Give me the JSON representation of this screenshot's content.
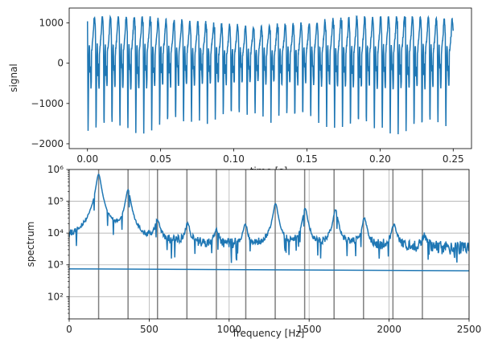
{
  "chart_data": [
    {
      "type": "line",
      "xlabel": "time [s]",
      "ylabel": "signal",
      "xlim": [
        -0.0125,
        0.2625
      ],
      "ylim": [
        -2120,
        1370
      ],
      "xticks": [
        0.0,
        0.05,
        0.1,
        0.15,
        0.2,
        0.25
      ],
      "xtick_labels": [
        "0.00",
        "0.05",
        "0.10",
        "0.15",
        "0.20",
        "0.25"
      ],
      "yticks": [
        -2000,
        -1000,
        0,
        1000
      ],
      "ytick_labels": [
        "−2000",
        "−1000",
        "0",
        "1000"
      ],
      "grid": false,
      "series_color": "#1f77b4",
      "signal": {
        "x_start": 0.0,
        "x_end": 0.25,
        "period_s": 0.005434,
        "cycles": 46,
        "max": 1150,
        "min": -1950
      }
    },
    {
      "type": "line",
      "xlabel": "frequency [Hz]",
      "ylabel": "spectrum",
      "xlim": [
        0,
        2500
      ],
      "ylim": [
        20,
        1000000
      ],
      "yscale": "log",
      "xticks": [
        0,
        500,
        1000,
        1500,
        2000,
        2500
      ],
      "xtick_labels": [
        "0",
        "500",
        "1000",
        "1500",
        "2000",
        "2500"
      ],
      "yticks": [
        100,
        1000,
        10000,
        100000,
        1000000
      ],
      "ytick_labels": [
        "10²",
        "10³",
        "10⁴",
        "10⁵",
        "10⁶"
      ],
      "grid": true,
      "series_color": "#1f77b4",
      "harmonic_color": "#808080",
      "harmonics_hz": [
        184,
        368,
        552,
        736,
        920,
        1104,
        1288,
        1472,
        1656,
        1840,
        2024,
        2208
      ],
      "peaks": [
        {
          "f": 184,
          "amp": 700000
        },
        {
          "f": 368,
          "amp": 220000
        },
        {
          "f": 552,
          "amp": 20000
        },
        {
          "f": 740,
          "amp": 15000
        },
        {
          "f": 920,
          "amp": 8000
        },
        {
          "f": 1100,
          "amp": 15000
        },
        {
          "f": 1290,
          "amp": 80000
        },
        {
          "f": 1475,
          "amp": 55000
        },
        {
          "f": 1665,
          "amp": 50000
        },
        {
          "f": 1845,
          "amp": 25000
        },
        {
          "f": 2030,
          "amp": 15000
        },
        {
          "f": 2220,
          "amp": 5000
        }
      ],
      "baseline": {
        "start": 5000,
        "mid": 3000,
        "end": 3300
      },
      "flat_line": {
        "start": 750,
        "end": 650
      }
    }
  ]
}
